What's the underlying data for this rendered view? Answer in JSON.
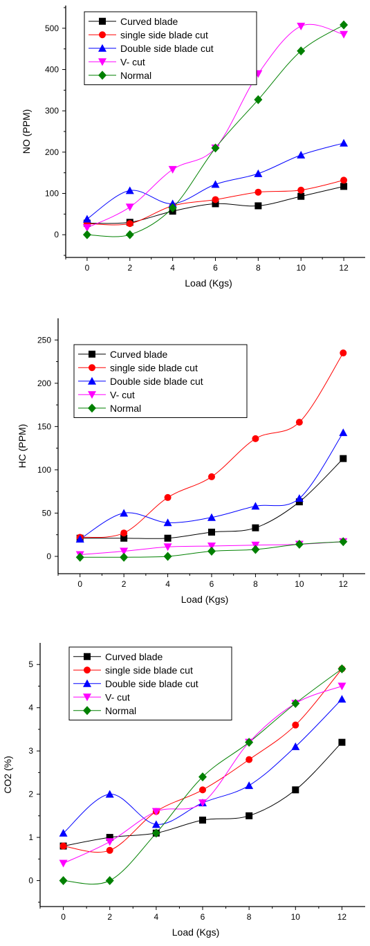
{
  "chart_data": [
    {
      "type": "line",
      "x": [
        0,
        2,
        4,
        6,
        8,
        10,
        12
      ],
      "xlabel": "Load (Kgs)",
      "ylabel": "NO (PPM)",
      "xlim": [
        -1,
        13
      ],
      "ylim": [
        -55,
        555
      ],
      "xticks": [
        "0",
        "2",
        "4",
        "6",
        "8",
        "10",
        "12"
      ],
      "yticks": [
        "0",
        "100",
        "200",
        "300",
        "400",
        "500"
      ],
      "legend_position": "top-left",
      "grid": false,
      "series": [
        {
          "name": "Curved blade",
          "color": "#000000",
          "marker": "square",
          "values": [
            28,
            30,
            57,
            75,
            70,
            93,
            117
          ]
        },
        {
          "name": "single side blade cut",
          "color": "#ff0000",
          "marker": "circle",
          "values": [
            27,
            27,
            70,
            85,
            103,
            108,
            132
          ]
        },
        {
          "name": "Double side blade cut",
          "color": "#0000ff",
          "marker": "triangle-up",
          "values": [
            38,
            107,
            75,
            122,
            148,
            193,
            222
          ]
        },
        {
          "name": "V- cut",
          "color": "#ff00ff",
          "marker": "triangle-down",
          "values": [
            17,
            67,
            158,
            210,
            390,
            505,
            485
          ]
        },
        {
          "name": "Normal",
          "color": "#008000",
          "marker": "diamond",
          "values": [
            0,
            0,
            65,
            210,
            327,
            445,
            508
          ]
        }
      ]
    },
    {
      "type": "line",
      "x": [
        0,
        2,
        4,
        6,
        8,
        10,
        12
      ],
      "xlabel": "Load (Kgs)",
      "ylabel": "HC (PPM)",
      "xlim": [
        -1,
        13
      ],
      "ylim": [
        -20,
        275
      ],
      "xticks": [
        "0",
        "2",
        "4",
        "6",
        "8",
        "10",
        "12"
      ],
      "yticks": [
        "0",
        "50",
        "100",
        "150",
        "200",
        "250"
      ],
      "legend_position": "top-left",
      "grid": false,
      "series": [
        {
          "name": "Curved blade",
          "color": "#000000",
          "marker": "square",
          "values": [
            21,
            21,
            21,
            28,
            33,
            63,
            113
          ]
        },
        {
          "name": "single side blade cut",
          "color": "#ff0000",
          "marker": "circle",
          "values": [
            22,
            27,
            68,
            92,
            136,
            155,
            235
          ]
        },
        {
          "name": "Double side blade cut",
          "color": "#0000ff",
          "marker": "triangle-up",
          "values": [
            20,
            50,
            39,
            45,
            58,
            67,
            143
          ]
        },
        {
          "name": "V- cut",
          "color": "#ff00ff",
          "marker": "triangle-down",
          "values": [
            2,
            6,
            11,
            12,
            13,
            14,
            17
          ]
        },
        {
          "name": "Normal",
          "color": "#008000",
          "marker": "diamond",
          "values": [
            -1,
            -1,
            0,
            6,
            8,
            14,
            17
          ]
        }
      ]
    },
    {
      "type": "line",
      "x": [
        0,
        2,
        4,
        6,
        8,
        10,
        12
      ],
      "xlabel": "Load (Kgs)",
      "ylabel": "CO2 (%)",
      "xlim": [
        -1,
        13
      ],
      "ylim": [
        -0.6,
        5.5
      ],
      "xticks": [
        "0",
        "2",
        "4",
        "6",
        "8",
        "10",
        "12"
      ],
      "yticks": [
        "0",
        "1",
        "2",
        "3",
        "4",
        "5"
      ],
      "legend_position": "top-left",
      "grid": false,
      "series": [
        {
          "name": "Curved blade",
          "color": "#000000",
          "marker": "square",
          "values": [
            0.8,
            1.0,
            1.1,
            1.4,
            1.5,
            2.1,
            3.2
          ]
        },
        {
          "name": "single side blade cut",
          "color": "#ff0000",
          "marker": "circle",
          "values": [
            0.8,
            0.7,
            1.6,
            2.1,
            2.8,
            3.6,
            4.9
          ]
        },
        {
          "name": "Double side blade cut",
          "color": "#0000ff",
          "marker": "triangle-up",
          "values": [
            1.1,
            2.0,
            1.3,
            1.8,
            2.2,
            3.1,
            4.2
          ]
        },
        {
          "name": "V- cut",
          "color": "#ff00ff",
          "marker": "triangle-down",
          "values": [
            0.4,
            0.9,
            1.6,
            1.8,
            3.2,
            4.1,
            4.5
          ]
        },
        {
          "name": "Normal",
          "color": "#008000",
          "marker": "diamond",
          "values": [
            0.0,
            0.0,
            1.1,
            2.4,
            3.2,
            4.1,
            4.9
          ]
        }
      ]
    }
  ]
}
